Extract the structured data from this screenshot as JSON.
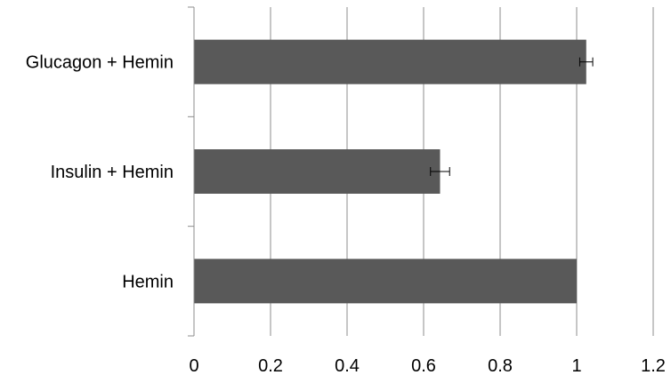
{
  "chart_data": {
    "type": "bar",
    "orientation": "horizontal",
    "categories": [
      "Glucagon + Hemin",
      "Insulin + Hemin",
      "Hemin"
    ],
    "values": [
      1.025,
      0.643,
      1.0
    ],
    "error": [
      0.017,
      0.025,
      0.0
    ],
    "xlim": [
      0,
      1.2
    ],
    "xticks": [
      "0",
      "0.2",
      "0.4",
      "0.6",
      "0.8",
      "1",
      "1.2"
    ],
    "grid": "vertical",
    "legend": "none",
    "title": "",
    "xlabel": "",
    "ylabel": "",
    "colors": {
      "bar": "#595959",
      "grid": "#8c8c8c",
      "axis": "#8c8c8c",
      "text": "#000000"
    }
  }
}
